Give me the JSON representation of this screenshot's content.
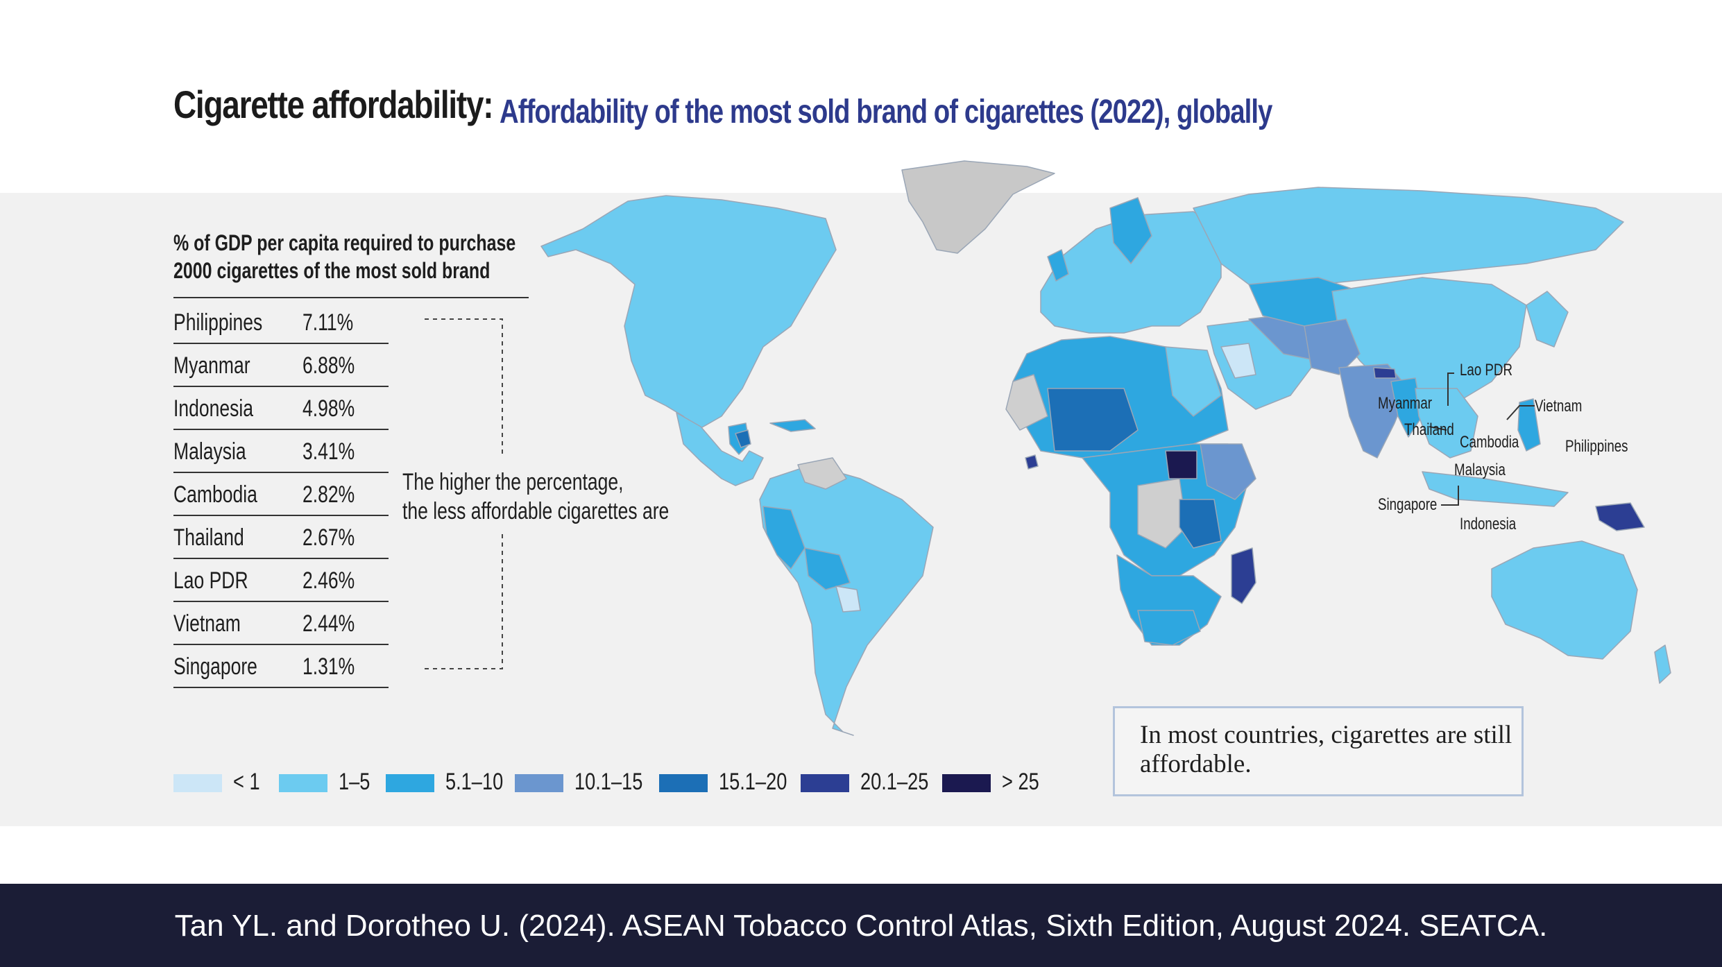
{
  "title": {
    "main": "Cigarette affordability:",
    "sub": "Affordability of the most sold brand of cigarettes (2022), globally"
  },
  "ranking": {
    "heading_line1": "% of GDP per capita required to purchase",
    "heading_line2": "2000 cigarettes of the most sold brand",
    "rows": [
      {
        "country": "Philippines",
        "value": "7.11%"
      },
      {
        "country": "Myanmar",
        "value": "6.88%"
      },
      {
        "country": "Indonesia",
        "value": "4.98%"
      },
      {
        "country": "Malaysia",
        "value": "3.41%"
      },
      {
        "country": "Cambodia",
        "value": "2.82%"
      },
      {
        "country": "Thailand",
        "value": "2.67%"
      },
      {
        "country": "Lao PDR",
        "value": "2.46%"
      },
      {
        "country": "Vietnam",
        "value": "2.44%"
      },
      {
        "country": "Singapore",
        "value": "1.31%"
      }
    ],
    "note_line1": "The higher the percentage,",
    "note_line2": "the less affordable cigarettes are"
  },
  "legend": [
    {
      "label": "< 1",
      "color": "#cce6f7"
    },
    {
      "label": "1–5",
      "color": "#6ccbf0"
    },
    {
      "label": "5.1–10",
      "color": "#2ea7e0"
    },
    {
      "label": "10.1–15",
      "color": "#6b96cf"
    },
    {
      "label": "15.1–20",
      "color": "#1c6fb6"
    },
    {
      "label": "20.1–25",
      "color": "#2c3e93"
    },
    {
      "label": "> 25",
      "color": "#1b1950"
    }
  ],
  "colors": {
    "no_data": "#cfcfcf",
    "greenland": "#c8c8c8",
    "title_sub": "#2d3a8c",
    "footer_bg": "#1b1d36"
  },
  "map_labels": {
    "lao": "Lao PDR",
    "myanmar": "Myanmar",
    "vietnam": "Vietnam",
    "thailand": "Thailand",
    "cambodia": "Cambodia",
    "philippines": "Philippines",
    "malaysia": "Malaysia",
    "singapore": "Singapore",
    "indonesia": "Indonesia"
  },
  "callout": "In most countries, cigarettes are still affordable.",
  "footer": "Tan YL. and Dorotheo U. (2024). ASEAN Tobacco Control Atlas, Sixth Edition, August 2024. SEATCA."
}
